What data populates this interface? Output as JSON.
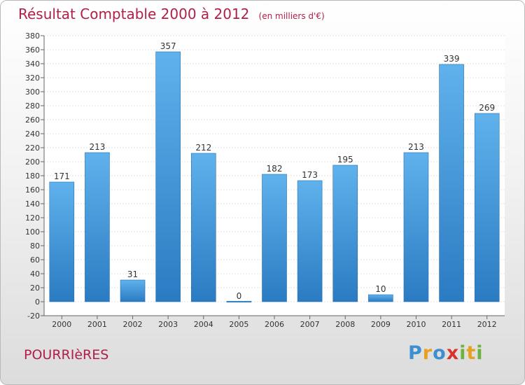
{
  "chart_data": {
    "type": "bar",
    "title": "Résultat Comptable 2000 à 2012",
    "subtitle": "(en milliers d'€)",
    "xlabel": "",
    "ylabel": "",
    "categories": [
      "2000",
      "2001",
      "2002",
      "2003",
      "2004",
      "2005",
      "2006",
      "2007",
      "2008",
      "2009",
      "2010",
      "2011",
      "2012"
    ],
    "values": [
      171,
      213,
      31,
      357,
      212,
      0,
      182,
      173,
      195,
      10,
      213,
      339,
      269
    ],
    "ylim": [
      -20,
      380
    ],
    "ytick_step": 20,
    "grid": true,
    "bar_color": "#4a9ee0"
  },
  "footer": {
    "commune": "POURRIèRES",
    "logo_text": "Proxiti",
    "logo_colors": [
      "#3d8fd1",
      "#e8a020",
      "#3d8fd1",
      "#d9342b",
      "#6db33f",
      "#e8a020",
      "#6db33f"
    ]
  }
}
